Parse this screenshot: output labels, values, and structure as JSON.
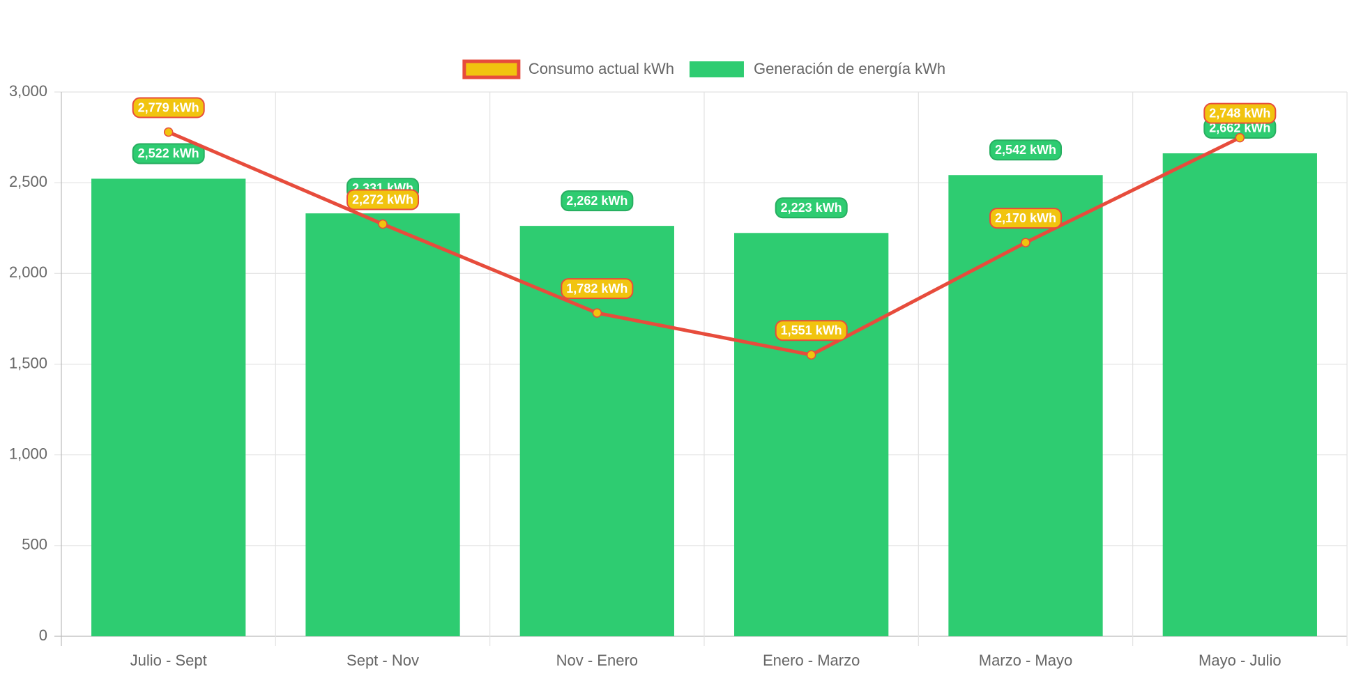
{
  "chart_data": {
    "type": "bar",
    "categories": [
      "Julio - Sept",
      "Sept - Nov",
      "Nov - Enero",
      "Enero - Marzo",
      "Marzo - Mayo",
      "Mayo - Julio"
    ],
    "series": [
      {
        "name": "Consumo actual kWh",
        "type": "line",
        "color": "#e74c3c",
        "point_color": "#f1c40f",
        "values": [
          2779,
          2272,
          1782,
          1551,
          2170,
          2748
        ],
        "value_labels": [
          "2,779 kWh",
          "2,272 kWh",
          "1,782 kWh",
          "1,551 kWh",
          "2,170 kWh",
          "2,748 kWh"
        ]
      },
      {
        "name": "Generación de energía kWh",
        "type": "bar",
        "color": "#2ecc71",
        "values": [
          2522,
          2331,
          2262,
          2223,
          2542,
          2662
        ],
        "value_labels": [
          "2,522 kWh",
          "2,331 kWh",
          "2,262 kWh",
          "2,223 kWh",
          "2,542 kWh",
          "2,662 kWh"
        ]
      }
    ],
    "ylim": [
      0,
      3000
    ],
    "yticks": [
      0,
      500,
      {
        "value": 1000,
        "label": "1,000"
      },
      {
        "value": 1500,
        "label": "1,500"
      },
      {
        "value": 2000,
        "label": "2,000"
      },
      {
        "value": 2500,
        "label": "2,500"
      },
      {
        "value": 3000,
        "label": "3,000"
      }
    ],
    "grid": true
  }
}
